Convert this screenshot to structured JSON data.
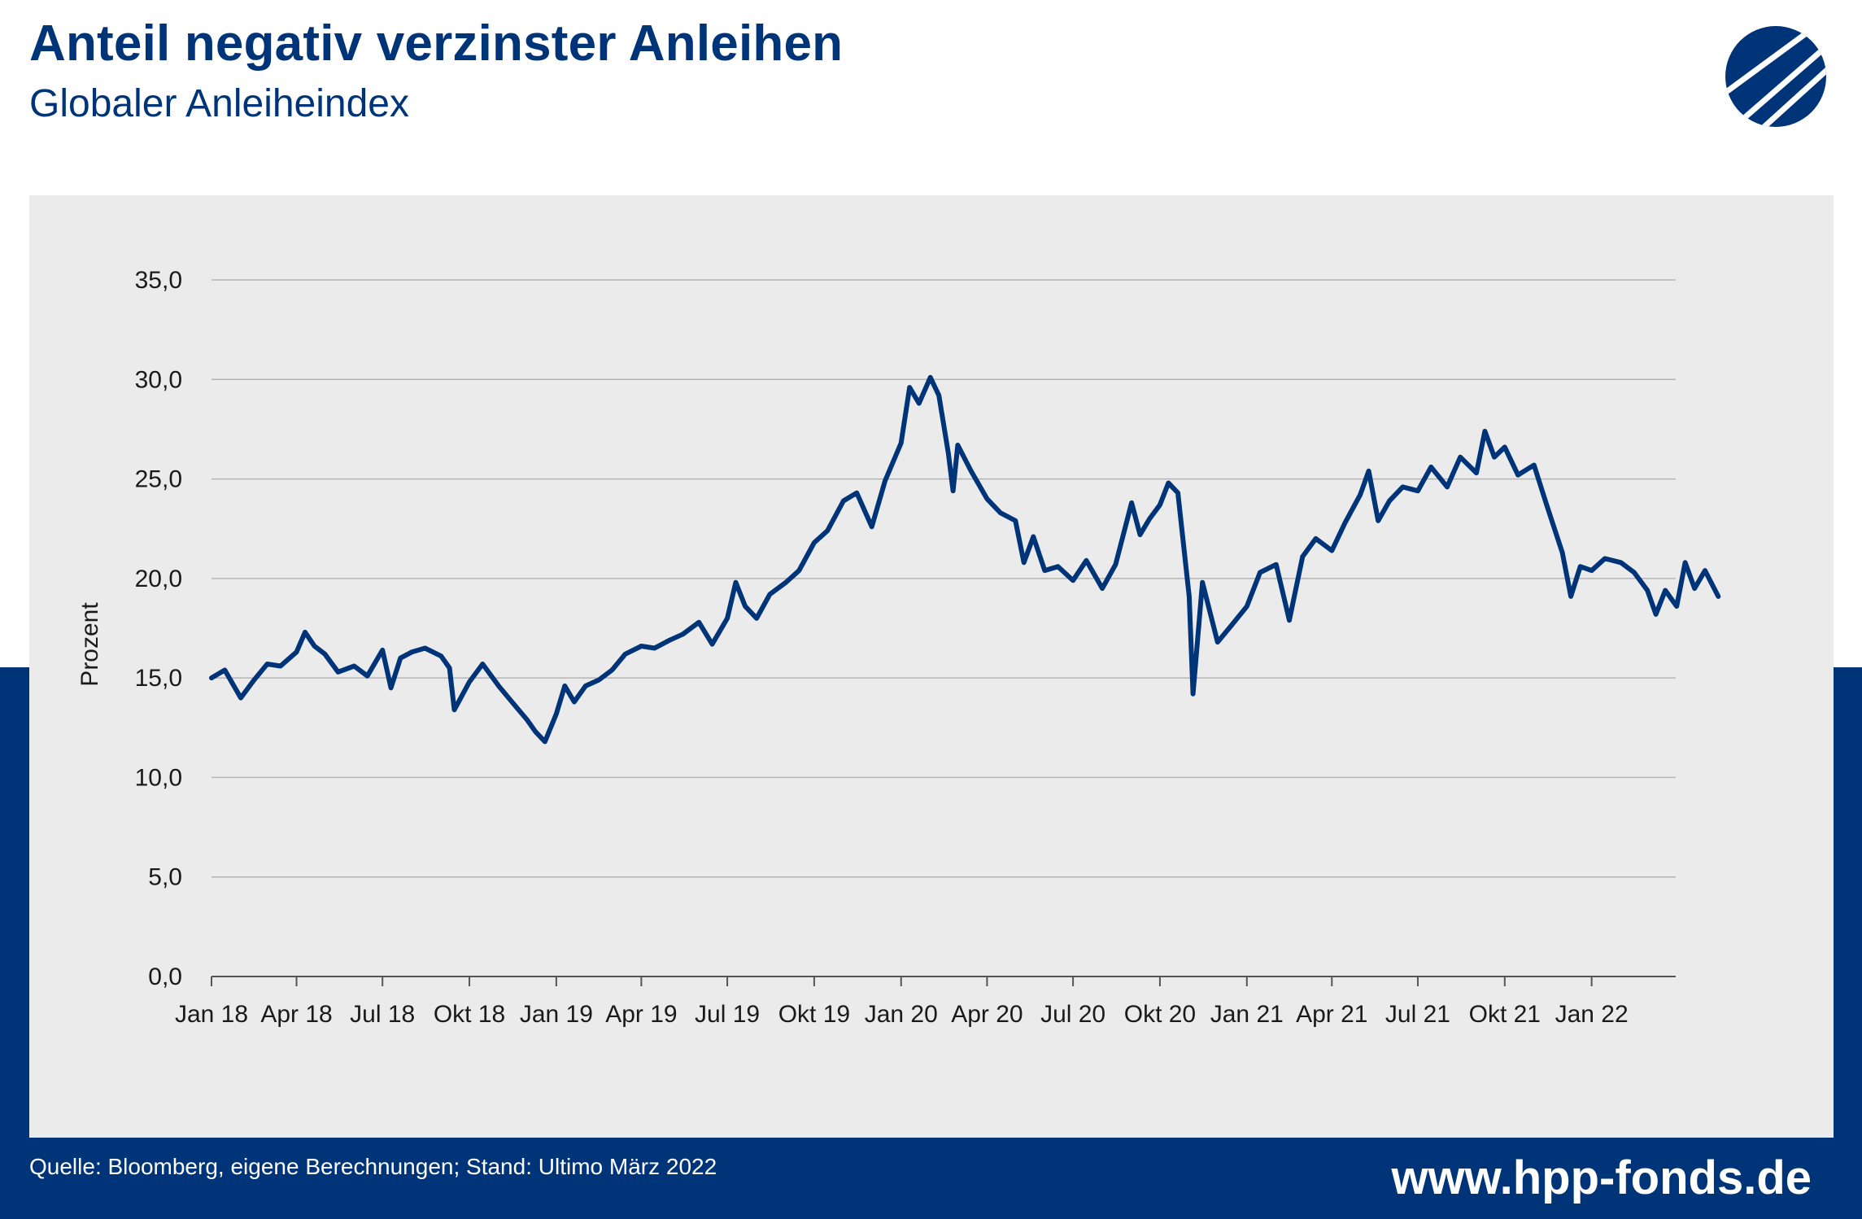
{
  "header": {
    "title": "Anteil negativ verzinster Anleihen",
    "subtitle": "Globaler Anleiheindex",
    "logo_icon": "hpp-logo-icon"
  },
  "footer": {
    "source": "Quelle: Bloomberg, eigene Berechnungen; Stand: Ultimo März 2022",
    "url": "www.hpp-fonds.de"
  },
  "colors": {
    "brand": "#003478",
    "panel": "#ebebec",
    "line": "#003478",
    "grid": "#b4b4b4"
  },
  "chart_data": {
    "type": "line",
    "title": "Anteil negativ verzinster Anleihen",
    "subtitle": "Globaler Anleiheindex",
    "ylabel": "Prozent",
    "xlabel": "",
    "ylim": [
      0,
      35
    ],
    "xlim": [
      "2018-01",
      "2022-03"
    ],
    "grid": true,
    "y_ticks": [
      "0,0",
      "5,0",
      "10,0",
      "15,0",
      "20,0",
      "25,0",
      "30,0",
      "35,0"
    ],
    "x_ticks": [
      "Jan 18",
      "Apr 18",
      "Jul 18",
      "Okt 18",
      "Jan 19",
      "Apr 19",
      "Jul 19",
      "Okt 19",
      "Jan 20",
      "Apr 20",
      "Jul 20",
      "Okt 20",
      "Jan 21",
      "Apr 21",
      "Jul 21",
      "Okt 21",
      "Jan 22"
    ],
    "series": [
      {
        "values": [
          {
            "x": "2018-01",
            "y": 15.0
          },
          {
            "x": "2018-01-15",
            "y": 15.4
          },
          {
            "x": "2018-02",
            "y": 14.0
          },
          {
            "x": "2018-02-15",
            "y": 14.9
          },
          {
            "x": "2018-03",
            "y": 15.7
          },
          {
            "x": "2018-03-15",
            "y": 15.6
          },
          {
            "x": "2018-04",
            "y": 16.3
          },
          {
            "x": "2018-04-10",
            "y": 17.3
          },
          {
            "x": "2018-04-20",
            "y": 16.6
          },
          {
            "x": "2018-05",
            "y": 16.2
          },
          {
            "x": "2018-05-15",
            "y": 15.3
          },
          {
            "x": "2018-06",
            "y": 15.6
          },
          {
            "x": "2018-06-15",
            "y": 15.1
          },
          {
            "x": "2018-07",
            "y": 16.4
          },
          {
            "x": "2018-07-10",
            "y": 14.5
          },
          {
            "x": "2018-07-20",
            "y": 16.0
          },
          {
            "x": "2018-08",
            "y": 16.3
          },
          {
            "x": "2018-08-15",
            "y": 16.5
          },
          {
            "x": "2018-09",
            "y": 16.1
          },
          {
            "x": "2018-09-10",
            "y": 15.5
          },
          {
            "x": "2018-09-15",
            "y": 13.4
          },
          {
            "x": "2018-10",
            "y": 14.8
          },
          {
            "x": "2018-10-15",
            "y": 15.7
          },
          {
            "x": "2018-11",
            "y": 14.6
          },
          {
            "x": "2018-11-15",
            "y": 13.8
          },
          {
            "x": "2018-12",
            "y": 12.9
          },
          {
            "x": "2018-12-10",
            "y": 12.3
          },
          {
            "x": "2018-12-20",
            "y": 11.8
          },
          {
            "x": "2019-01",
            "y": 13.2
          },
          {
            "x": "2019-01-10",
            "y": 14.6
          },
          {
            "x": "2019-01-20",
            "y": 13.8
          },
          {
            "x": "2019-02",
            "y": 14.6
          },
          {
            "x": "2019-02-15",
            "y": 14.9
          },
          {
            "x": "2019-03",
            "y": 15.4
          },
          {
            "x": "2019-03-15",
            "y": 16.2
          },
          {
            "x": "2019-04",
            "y": 16.6
          },
          {
            "x": "2019-04-15",
            "y": 16.5
          },
          {
            "x": "2019-05",
            "y": 16.9
          },
          {
            "x": "2019-05-15",
            "y": 17.2
          },
          {
            "x": "2019-06",
            "y": 17.8
          },
          {
            "x": "2019-06-15",
            "y": 16.7
          },
          {
            "x": "2019-07",
            "y": 18.0
          },
          {
            "x": "2019-07-10",
            "y": 19.8
          },
          {
            "x": "2019-07-20",
            "y": 18.6
          },
          {
            "x": "2019-08",
            "y": 18.0
          },
          {
            "x": "2019-08-15",
            "y": 19.2
          },
          {
            "x": "2019-09",
            "y": 19.8
          },
          {
            "x": "2019-09-15",
            "y": 20.4
          },
          {
            "x": "2019-10",
            "y": 21.8
          },
          {
            "x": "2019-10-15",
            "y": 22.4
          },
          {
            "x": "2019-11",
            "y": 23.9
          },
          {
            "x": "2019-11-15",
            "y": 24.3
          },
          {
            "x": "2019-12",
            "y": 22.6
          },
          {
            "x": "2019-12-15",
            "y": 24.9
          },
          {
            "x": "2020-01",
            "y": 26.8
          },
          {
            "x": "2020-01-10",
            "y": 29.6
          },
          {
            "x": "2020-01-20",
            "y": 28.8
          },
          {
            "x": "2020-02",
            "y": 30.1
          },
          {
            "x": "2020-02-10",
            "y": 29.2
          },
          {
            "x": "2020-02-20",
            "y": 26.3
          },
          {
            "x": "2020-02-25",
            "y": 24.4
          },
          {
            "x": "2020-03",
            "y": 26.7
          },
          {
            "x": "2020-03-15",
            "y": 25.4
          },
          {
            "x": "2020-04",
            "y": 24.0
          },
          {
            "x": "2020-04-15",
            "y": 23.3
          },
          {
            "x": "2020-05",
            "y": 22.9
          },
          {
            "x": "2020-05-10",
            "y": 20.8
          },
          {
            "x": "2020-05-20",
            "y": 22.1
          },
          {
            "x": "2020-06",
            "y": 20.4
          },
          {
            "x": "2020-06-15",
            "y": 20.6
          },
          {
            "x": "2020-07",
            "y": 19.9
          },
          {
            "x": "2020-07-15",
            "y": 20.9
          },
          {
            "x": "2020-08",
            "y": 19.5
          },
          {
            "x": "2020-08-15",
            "y": 20.7
          },
          {
            "x": "2020-09",
            "y": 23.8
          },
          {
            "x": "2020-09-10",
            "y": 22.2
          },
          {
            "x": "2020-09-20",
            "y": 23.0
          },
          {
            "x": "2020-10",
            "y": 23.7
          },
          {
            "x": "2020-10-10",
            "y": 24.8
          },
          {
            "x": "2020-10-20",
            "y": 24.3
          },
          {
            "x": "2020-11",
            "y": 19.1
          },
          {
            "x": "2020-11-05",
            "y": 14.2
          },
          {
            "x": "2020-11-15",
            "y": 19.8
          },
          {
            "x": "2020-12",
            "y": 16.8
          },
          {
            "x": "2020-12-15",
            "y": 17.6
          },
          {
            "x": "2021-01",
            "y": 18.6
          },
          {
            "x": "2021-01-15",
            "y": 20.3
          },
          {
            "x": "2021-02",
            "y": 20.7
          },
          {
            "x": "2021-02-15",
            "y": 17.9
          },
          {
            "x": "2021-03",
            "y": 21.1
          },
          {
            "x": "2021-03-15",
            "y": 22.0
          },
          {
            "x": "2021-04",
            "y": 21.4
          },
          {
            "x": "2021-04-15",
            "y": 22.8
          },
          {
            "x": "2021-05",
            "y": 24.2
          },
          {
            "x": "2021-05-10",
            "y": 25.4
          },
          {
            "x": "2021-05-20",
            "y": 22.9
          },
          {
            "x": "2021-06",
            "y": 23.9
          },
          {
            "x": "2021-06-15",
            "y": 24.6
          },
          {
            "x": "2021-07",
            "y": 24.4
          },
          {
            "x": "2021-07-15",
            "y": 25.6
          },
          {
            "x": "2021-08",
            "y": 24.6
          },
          {
            "x": "2021-08-15",
            "y": 26.1
          },
          {
            "x": "2021-09",
            "y": 25.3
          },
          {
            "x": "2021-09-10",
            "y": 27.4
          },
          {
            "x": "2021-09-20",
            "y": 26.1
          },
          {
            "x": "2021-10",
            "y": 26.6
          },
          {
            "x": "2021-10-15",
            "y": 25.2
          },
          {
            "x": "2021-11",
            "y": 25.7
          },
          {
            "x": "2021-11-15",
            "y": 23.6
          },
          {
            "x": "2021-12",
            "y": 21.3
          },
          {
            "x": "2021-12-10",
            "y": 19.1
          },
          {
            "x": "2021-12-20",
            "y": 20.6
          },
          {
            "x": "2022-01",
            "y": 20.4
          },
          {
            "x": "2022-01-15",
            "y": 21.0
          },
          {
            "x": "2022-02",
            "y": 20.8
          },
          {
            "x": "2022-02-15",
            "y": 20.3
          },
          {
            "x": "2022-03",
            "y": 19.4
          },
          {
            "x": "2022-03-10",
            "y": 18.2
          },
          {
            "x": "2022-03-20",
            "y": 19.4
          },
          {
            "x": "2022-04",
            "y": 18.6
          },
          {
            "x": "2022-04-10",
            "y": 20.8
          },
          {
            "x": "2022-04-20",
            "y": 19.5
          },
          {
            "x": "2022-05",
            "y": 20.4
          },
          {
            "x": "2022-05-15",
            "y": 19.1
          }
        ]
      }
    ]
  }
}
